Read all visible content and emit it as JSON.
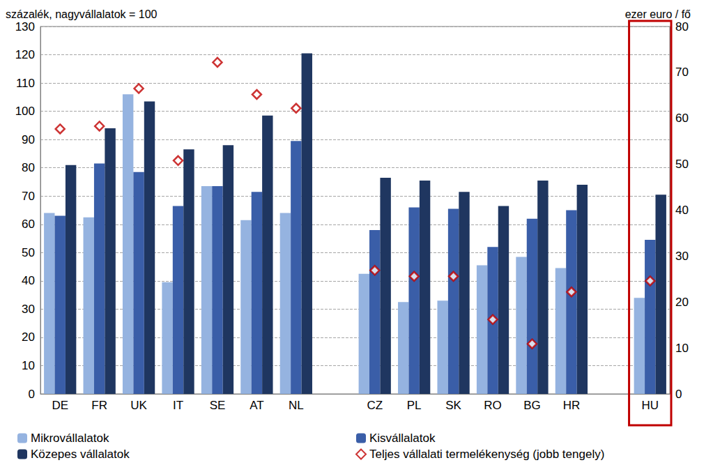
{
  "chart_data": {
    "type": "bar",
    "y_label": "százalék, nagyvállalatok = 100",
    "y2_label": "ezer euro / fő",
    "categories": [
      "DE",
      "FR",
      "UK",
      "IT",
      "SE",
      "AT",
      "NL",
      null,
      "CZ",
      "PL",
      "SK",
      "RO",
      "BG",
      "HR",
      null,
      "HU"
    ],
    "series": [
      {
        "name": "Mikrovállalatok",
        "color": "#95b3e0",
        "type": "bar",
        "values": [
          64,
          62.5,
          106,
          39.5,
          73.5,
          61.5,
          64,
          null,
          42.5,
          32.5,
          33,
          45.5,
          48.5,
          44.5,
          null,
          34
        ]
      },
      {
        "name": "Kisvállalatok",
        "color": "#3a5ea8",
        "type": "bar",
        "values": [
          63,
          81.5,
          78.5,
          66.5,
          73.5,
          71.5,
          89.5,
          null,
          58,
          66,
          65.5,
          52,
          62,
          65,
          null,
          54.5
        ]
      },
      {
        "name": "Közepes vállalatok",
        "color": "#1f3660",
        "type": "bar",
        "values": [
          81,
          94,
          103.5,
          86.5,
          88,
          98.5,
          120.5,
          null,
          76.5,
          75.5,
          71.5,
          66.5,
          75.5,
          74,
          null,
          70.5
        ]
      },
      {
        "name": "Teljes vállalati termelékenység (jobb tengely)",
        "color": "#c00000",
        "type": "scatter",
        "marker": "diamond",
        "axis": "y2",
        "values": [
          57.7,
          58.3,
          66.5,
          50.8,
          72.2,
          65.2,
          62.2,
          null,
          26.9,
          25.6,
          25.6,
          16.2,
          10.9,
          22.2,
          null,
          24.6
        ]
      }
    ],
    "ylim": [
      0,
      130
    ],
    "yticks": [
      0,
      10,
      20,
      30,
      40,
      50,
      60,
      70,
      80,
      90,
      100,
      110,
      120,
      130
    ],
    "y2lim": [
      0,
      80
    ],
    "y2ticks": [
      0,
      10,
      20,
      30,
      40,
      50,
      60,
      70,
      80
    ],
    "grid": true,
    "legend": "bottom"
  }
}
